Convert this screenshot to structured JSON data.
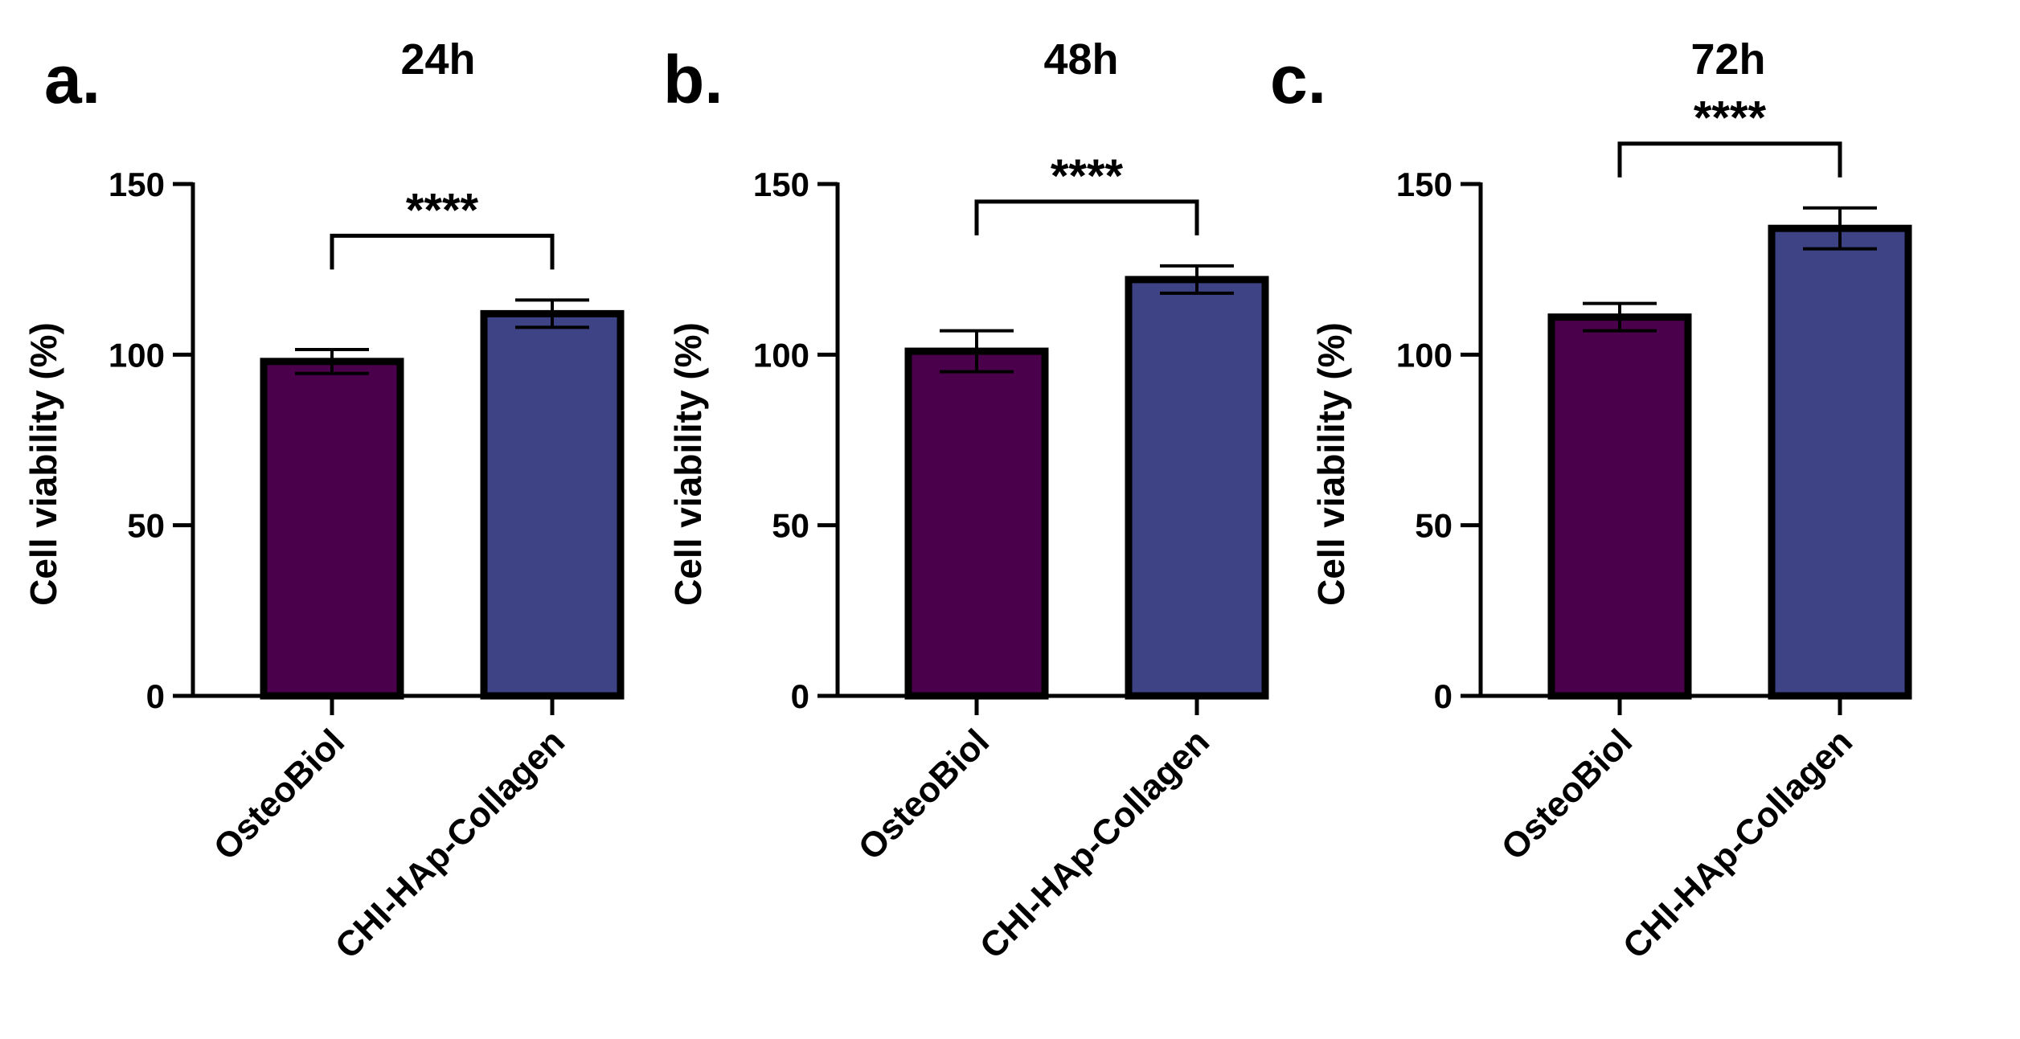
{
  "chart_data": [
    {
      "type": "bar",
      "panel_label": "a.",
      "title": "24h",
      "ylabel": "Cell viability (%)",
      "xlabel": "",
      "ylim": [
        0,
        150
      ],
      "yticks": [
        "0",
        "50",
        "100",
        "150"
      ],
      "categories": [
        "OsteoBiol",
        "CHI-HAp-Collagen"
      ],
      "values": [
        98,
        112
      ],
      "errors": [
        3.5,
        4
      ],
      "colors": [
        "#4a004a",
        "#3d4385"
      ],
      "significance": "****"
    },
    {
      "type": "bar",
      "panel_label": "b.",
      "title": "48h",
      "ylabel": "Cell viability (%)",
      "xlabel": "",
      "ylim": [
        0,
        150
      ],
      "yticks": [
        "0",
        "50",
        "100",
        "150"
      ],
      "categories": [
        "OsteoBiol",
        "CHI-HAp-Collagen"
      ],
      "values": [
        101,
        122
      ],
      "errors": [
        6,
        4
      ],
      "colors": [
        "#4a004a",
        "#3d4385"
      ],
      "significance": "****"
    },
    {
      "type": "bar",
      "panel_label": "c.",
      "title": "72h",
      "ylabel": "Cell viability (%)",
      "xlabel": "",
      "ylim": [
        0,
        150
      ],
      "yticks": [
        "0",
        "50",
        "100",
        "150"
      ],
      "categories": [
        "OsteoBiol",
        "CHI-HAp-Collagen"
      ],
      "values": [
        111,
        137
      ],
      "errors": [
        4,
        6
      ],
      "colors": [
        "#4a004a",
        "#3d4385"
      ],
      "significance": "****"
    }
  ]
}
